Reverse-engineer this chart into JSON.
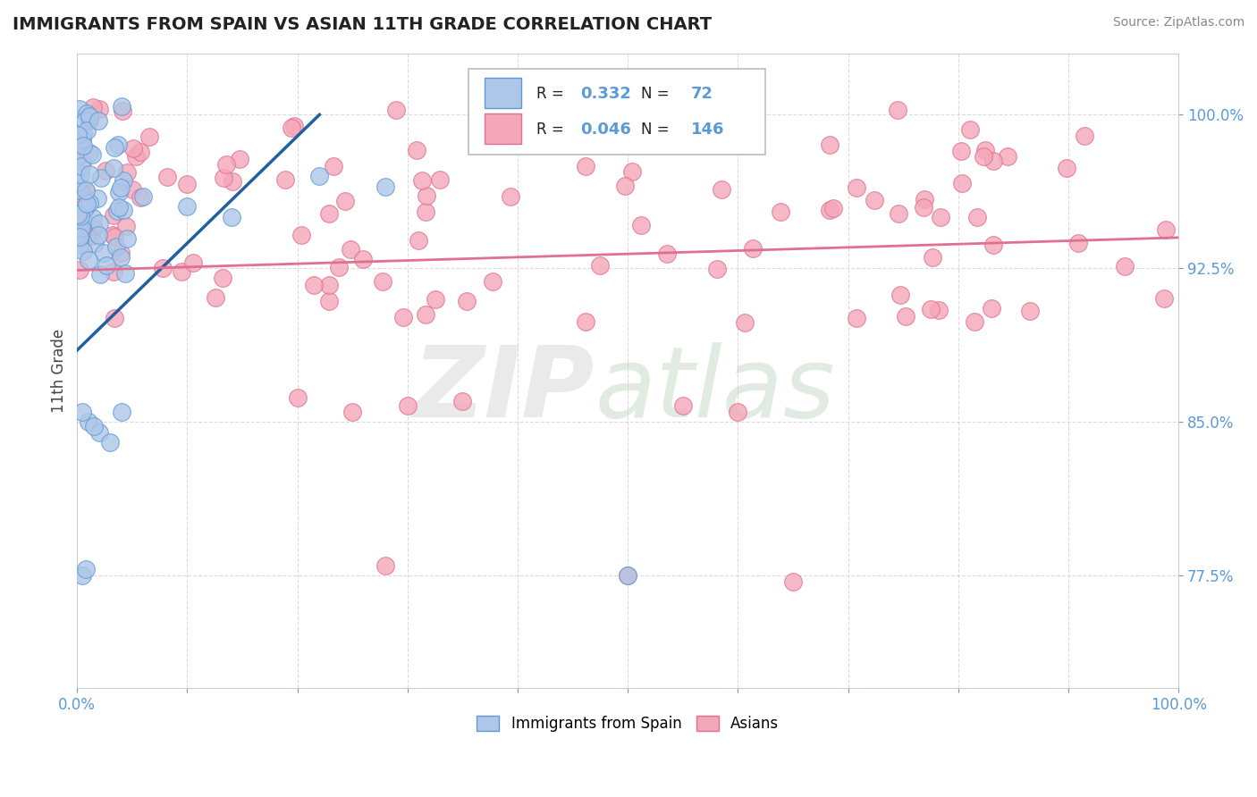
{
  "title": "IMMIGRANTS FROM SPAIN VS ASIAN 11TH GRADE CORRELATION CHART",
  "source_text": "Source: ZipAtlas.com",
  "ylabel": "11th Grade",
  "r_blue": "0.332",
  "n_blue": "72",
  "r_pink": "0.046",
  "n_pink": "146",
  "blue_fill": "#aec6e8",
  "blue_edge": "#5b9bd5",
  "blue_line": "#2060a0",
  "pink_fill": "#f4a7b9",
  "pink_edge": "#e07090",
  "pink_line": "#e07090",
  "tick_color": "#5b9bd5",
  "title_color": "#222222",
  "source_color": "#888888",
  "ylabel_color": "#444444",
  "grid_color": "#cccccc",
  "background": "#ffffff",
  "xlim": [
    0.0,
    1.0
  ],
  "ylim": [
    0.72,
    1.03
  ],
  "yticks": [
    0.775,
    0.85,
    0.925,
    1.0
  ],
  "ytick_labels": [
    "77.5%",
    "85.0%",
    "92.5%",
    "100.0%"
  ],
  "blue_trend_x": [
    0.0,
    0.22
  ],
  "blue_trend_y": [
    0.885,
    1.0
  ],
  "pink_trend_x": [
    0.0,
    1.0
  ],
  "pink_trend_y": [
    0.924,
    0.94
  ]
}
